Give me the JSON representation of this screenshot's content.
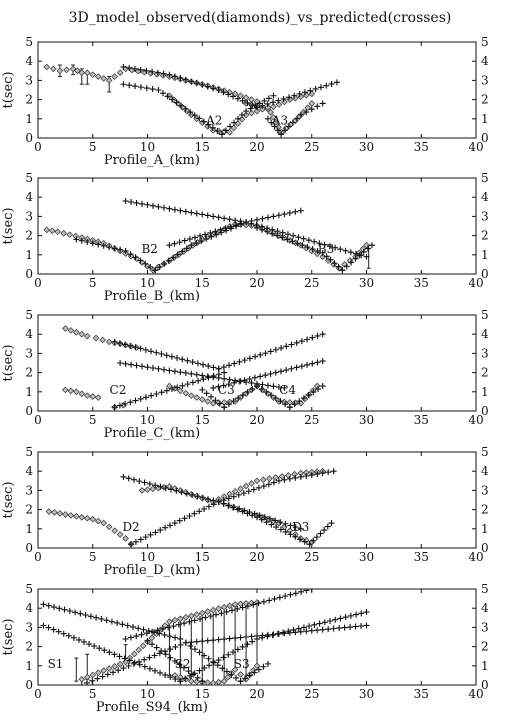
{
  "figure_title": "3D_model_observed(diamonds)_vs_predicted(crosses)",
  "chart_data": [
    {
      "type": "scatter",
      "xlabel": "Profile_A_(km)",
      "ylabel": "t(sec)",
      "xlim": [
        0,
        40
      ],
      "ylim": [
        0,
        5
      ],
      "xticks": [
        0,
        5,
        10,
        15,
        20,
        25,
        30,
        35,
        40
      ],
      "yticks": [
        0,
        1,
        2,
        3,
        4,
        5
      ],
      "stations": [
        {
          "label": "A2",
          "x": 16.1,
          "y": 0.9
        },
        {
          "label": "A3",
          "x": 22.1,
          "y": 0.9
        }
      ],
      "predicted": [
        {
          "x": [
            7.8,
            12.0,
            16.5
          ],
          "y": [
            3.7,
            3.3,
            2.5
          ]
        },
        {
          "x": [
            16.5,
            20.0,
            27.3
          ],
          "y": [
            2.5,
            1.6,
            2.9
          ]
        },
        {
          "x": [
            7.8,
            11.0,
            16.8
          ],
          "y": [
            2.8,
            2.5,
            0.2
          ]
        },
        {
          "x": [
            16.8,
            19.0,
            21.5
          ],
          "y": [
            0.2,
            1.4,
            2.2
          ]
        },
        {
          "x": [
            21.0,
            22.2
          ],
          "y": [
            1.0,
            0.2
          ]
        },
        {
          "x": [
            22.2,
            24.0,
            26.0
          ],
          "y": [
            0.2,
            1.2,
            1.8
          ]
        }
      ],
      "observed": [
        {
          "x": [
            0.8,
            2.0,
            3.2,
            4.0,
            4.5,
            6.5,
            8.0,
            12.0,
            15.0,
            18.0,
            20.0
          ],
          "y": [
            3.7,
            3.5,
            3.6,
            3.4,
            3.4,
            3.0,
            3.6,
            3.2,
            2.8,
            2.3,
            1.9
          ]
        },
        {
          "x": [
            19.0,
            21.0,
            23.0,
            25.0
          ],
          "y": [
            1.8,
            1.5,
            2.0,
            2.3
          ]
        },
        {
          "x": [
            12.0,
            14.0,
            16.0,
            17.5,
            19.0,
            21.0,
            22.2,
            23.5,
            25.0
          ],
          "y": [
            2.2,
            1.2,
            0.4,
            0.3,
            1.2,
            1.6,
            0.3,
            0.9,
            1.8
          ]
        }
      ],
      "error_bars": [
        {
          "x": 2.0,
          "low": 3.2,
          "high": 3.8
        },
        {
          "x": 3.2,
          "low": 3.3,
          "high": 3.8
        },
        {
          "x": 4.0,
          "low": 2.8,
          "high": 3.6
        },
        {
          "x": 4.5,
          "low": 2.8,
          "high": 3.4
        },
        {
          "x": 6.5,
          "low": 2.4,
          "high": 3.2
        }
      ]
    },
    {
      "type": "scatter",
      "xlabel": "Profile_B_(km)",
      "ylabel": "t(sec)",
      "xlim": [
        0,
        40
      ],
      "ylim": [
        0,
        5
      ],
      "xticks": [
        0,
        5,
        10,
        15,
        20,
        25,
        30,
        35,
        40
      ],
      "yticks": [
        0,
        1,
        2,
        3,
        4,
        5
      ],
      "stations": [
        {
          "label": "B2",
          "x": 10.2,
          "y": 1.3
        },
        {
          "label": "B3",
          "x": 26.3,
          "y": 1.3
        }
      ],
      "predicted": [
        {
          "x": [
            8.0,
            19.0,
            30.0
          ],
          "y": [
            3.8,
            2.7,
            0.9
          ]
        },
        {
          "x": [
            12.0,
            19.0,
            24.0
          ],
          "y": [
            1.5,
            2.7,
            3.3
          ]
        },
        {
          "x": [
            3.5,
            8.0,
            10.7
          ],
          "y": [
            1.8,
            1.2,
            0.2
          ]
        },
        {
          "x": [
            10.7,
            14.0,
            19.0
          ],
          "y": [
            0.2,
            1.5,
            2.7
          ]
        },
        {
          "x": [
            20.0,
            26.0,
            27.8
          ],
          "y": [
            2.4,
            1.1,
            0.2
          ]
        },
        {
          "x": [
            27.8,
            29.0,
            30.5
          ],
          "y": [
            0.2,
            0.8,
            1.5
          ]
        }
      ],
      "observed": [
        {
          "x": [
            0.8,
            1.8,
            4.0,
            6.0,
            9.0,
            10.5,
            12.0,
            15.0,
            18.0,
            20.0,
            22.0,
            24.0,
            26.0,
            27.5,
            29.0,
            30.0
          ],
          "y": [
            2.3,
            2.2,
            1.9,
            1.6,
            0.8,
            0.2,
            0.7,
            1.8,
            2.6,
            2.5,
            2.0,
            1.5,
            0.9,
            0.3,
            0.9,
            1.5
          ]
        }
      ],
      "error_bars": [
        {
          "x": 30.2,
          "low": 0.3,
          "high": 1.5
        }
      ]
    },
    {
      "type": "scatter",
      "xlabel": "Profile_C_(km)",
      "ylabel": "t(sec)",
      "xlim": [
        0,
        40
      ],
      "ylim": [
        0,
        5
      ],
      "xticks": [
        0,
        5,
        10,
        15,
        20,
        25,
        30,
        35,
        40
      ],
      "yticks": [
        0,
        1,
        2,
        3,
        4,
        5
      ],
      "stations": [
        {
          "label": "C2",
          "x": 7.3,
          "y": 1.1
        },
        {
          "label": "C3",
          "x": 17.2,
          "y": 1.1
        },
        {
          "label": "C4",
          "x": 22.8,
          "y": 1.1
        }
      ],
      "predicted": [
        {
          "x": [
            7.0,
            16.5
          ],
          "y": [
            3.6,
            2.2
          ]
        },
        {
          "x": [
            16.5,
            26.0
          ],
          "y": [
            2.2,
            4.0
          ]
        },
        {
          "x": [
            7.5,
            22.5
          ],
          "y": [
            2.5,
            1.2
          ]
        },
        {
          "x": [
            16.0,
            26.0
          ],
          "y": [
            1.2,
            2.6
          ]
        },
        {
          "x": [
            7.0,
            17.0
          ],
          "y": [
            0.2,
            2.0
          ]
        },
        {
          "x": [
            15.0,
            17.0
          ],
          "y": [
            1.1,
            0.2
          ]
        },
        {
          "x": [
            17.0,
            20.0
          ],
          "y": [
            0.2,
            1.3
          ]
        },
        {
          "x": [
            20.0,
            23.0
          ],
          "y": [
            1.3,
            0.2
          ]
        },
        {
          "x": [
            23.0,
            26.0
          ],
          "y": [
            0.2,
            1.3
          ]
        }
      ],
      "observed": [
        {
          "x": [
            2.5,
            3.5,
            4.5,
            5.3,
            6.5,
            7.5,
            9.0
          ],
          "y": [
            4.3,
            4.1,
            3.9,
            3.8,
            3.6,
            3.5,
            3.3
          ]
        },
        {
          "x": [
            2.5,
            3.5,
            4.5,
            5.5
          ],
          "y": [
            1.1,
            1.0,
            0.8,
            0.7
          ]
        },
        {
          "x": [
            7.0,
            7.8
          ],
          "y": [
            0.2,
            0.3
          ]
        },
        {
          "x": [
            12.0,
            14.0,
            16.0,
            18.0,
            20.0,
            22.0,
            24.0,
            25.5
          ],
          "y": [
            1.3,
            0.8,
            0.4,
            0.5,
            1.3,
            0.5,
            0.4,
            1.3
          ]
        }
      ],
      "error_bars": []
    },
    {
      "type": "scatter",
      "xlabel": "Profile_D_(km)",
      "ylabel": "t(sec)",
      "xlim": [
        0,
        40
      ],
      "ylim": [
        0,
        5
      ],
      "xticks": [
        0,
        5,
        10,
        15,
        20,
        25,
        30,
        35,
        40
      ],
      "yticks": [
        0,
        1,
        2,
        3,
        4,
        5
      ],
      "stations": [
        {
          "label": "D2",
          "x": 8.5,
          "y": 1.1
        },
        {
          "label": "D3",
          "x": 24.0,
          "y": 1.1
        }
      ],
      "predicted": [
        {
          "x": [
            7.8,
            16.5,
            24.0
          ],
          "y": [
            3.7,
            2.4,
            1.0
          ]
        },
        {
          "x": [
            16.5,
            22.0,
            27.0
          ],
          "y": [
            2.4,
            3.5,
            4.0
          ]
        },
        {
          "x": [
            8.5,
            16.5
          ],
          "y": [
            0.2,
            2.4
          ]
        },
        {
          "x": [
            16.5,
            20.0,
            24.8
          ],
          "y": [
            2.4,
            1.6,
            0.2
          ]
        },
        {
          "x": [
            24.8,
            26.8
          ],
          "y": [
            0.2,
            1.3
          ]
        }
      ],
      "observed": [
        {
          "x": [
            1.0,
            2.0,
            3.0,
            4.0,
            5.0,
            6.0,
            7.0,
            8.0,
            8.5
          ],
          "y": [
            1.9,
            1.8,
            1.7,
            1.6,
            1.5,
            1.3,
            0.9,
            0.5,
            0.2
          ]
        },
        {
          "x": [
            9.5,
            12.0,
            16.0,
            20.0,
            24.0,
            26.0
          ],
          "y": [
            3.0,
            3.2,
            2.4,
            3.5,
            3.9,
            4.0
          ]
        },
        {
          "x": [
            20.0,
            22.0,
            24.0,
            25.0
          ],
          "y": [
            1.7,
            1.3,
            0.5,
            0.3
          ]
        }
      ],
      "error_bars": []
    },
    {
      "type": "scatter",
      "xlabel": "Profile_S94_(km)",
      "ylabel": "t(sec)",
      "xlim": [
        0,
        40
      ],
      "ylim": [
        0,
        5
      ],
      "xticks": [
        0,
        5,
        10,
        15,
        20,
        25,
        30,
        35,
        40
      ],
      "yticks": [
        0,
        1,
        2,
        3,
        4,
        5
      ],
      "stations": [
        {
          "label": "S1",
          "x": 1.6,
          "y": 1.1
        },
        {
          "label": "S2",
          "x": 13.2,
          "y": 1.1
        },
        {
          "label": "S3",
          "x": 18.6,
          "y": 1.1
        }
      ],
      "predicted": [
        {
          "x": [
            0.5,
            13.0
          ],
          "y": [
            4.2,
            2.4
          ]
        },
        {
          "x": [
            8.0,
            25.0
          ],
          "y": [
            2.4,
            5.0
          ]
        },
        {
          "x": [
            0.5,
            13.0
          ],
          "y": [
            3.1,
            0.2
          ]
        },
        {
          "x": [
            13.0,
            20.0,
            30.0
          ],
          "y": [
            0.2,
            2.4,
            3.8
          ]
        },
        {
          "x": [
            4.0,
            13.5,
            30.0
          ],
          "y": [
            0.0,
            2.2,
            3.1
          ]
        },
        {
          "x": [
            13.5,
            18.5
          ],
          "y": [
            2.2,
            0.2
          ]
        },
        {
          "x": [
            18.5,
            21.0
          ],
          "y": [
            0.2,
            1.1
          ]
        },
        {
          "x": [
            10.0,
            15.0
          ],
          "y": [
            2.3,
            0.2
          ]
        }
      ],
      "observed": [
        {
          "x": [
            4.0,
            8.0,
            12.0,
            14.0,
            16.0,
            18.0,
            20.0
          ],
          "y": [
            0.3,
            1.2,
            3.3,
            3.6,
            3.9,
            4.2,
            4.3
          ]
        },
        {
          "x": [
            12.5,
            14.0,
            16.0,
            17.0,
            18.0,
            19.0,
            20.0
          ],
          "y": [
            0.5,
            0.2,
            0.1,
            0.2,
            0.8,
            0.3,
            1.0
          ]
        }
      ],
      "error_bars": [
        {
          "x": 3.5,
          "low": 0.2,
          "high": 1.4
        },
        {
          "x": 4.5,
          "low": 0.3,
          "high": 1.6
        },
        {
          "x": 8.0,
          "low": 1.2,
          "high": 2.1
        },
        {
          "x": 12.0,
          "low": 0.5,
          "high": 3.3
        },
        {
          "x": 13.0,
          "low": 0.3,
          "high": 3.4
        },
        {
          "x": 14.0,
          "low": 0.2,
          "high": 3.6
        },
        {
          "x": 15.0,
          "low": 0.2,
          "high": 3.7
        },
        {
          "x": 16.0,
          "low": 0.1,
          "high": 3.9
        },
        {
          "x": 17.0,
          "low": 0.2,
          "high": 4.0
        },
        {
          "x": 18.0,
          "low": 0.8,
          "high": 4.1
        },
        {
          "x": 19.0,
          "low": 0.3,
          "high": 4.2
        },
        {
          "x": 20.0,
          "low": 1.0,
          "high": 4.3
        }
      ]
    }
  ]
}
